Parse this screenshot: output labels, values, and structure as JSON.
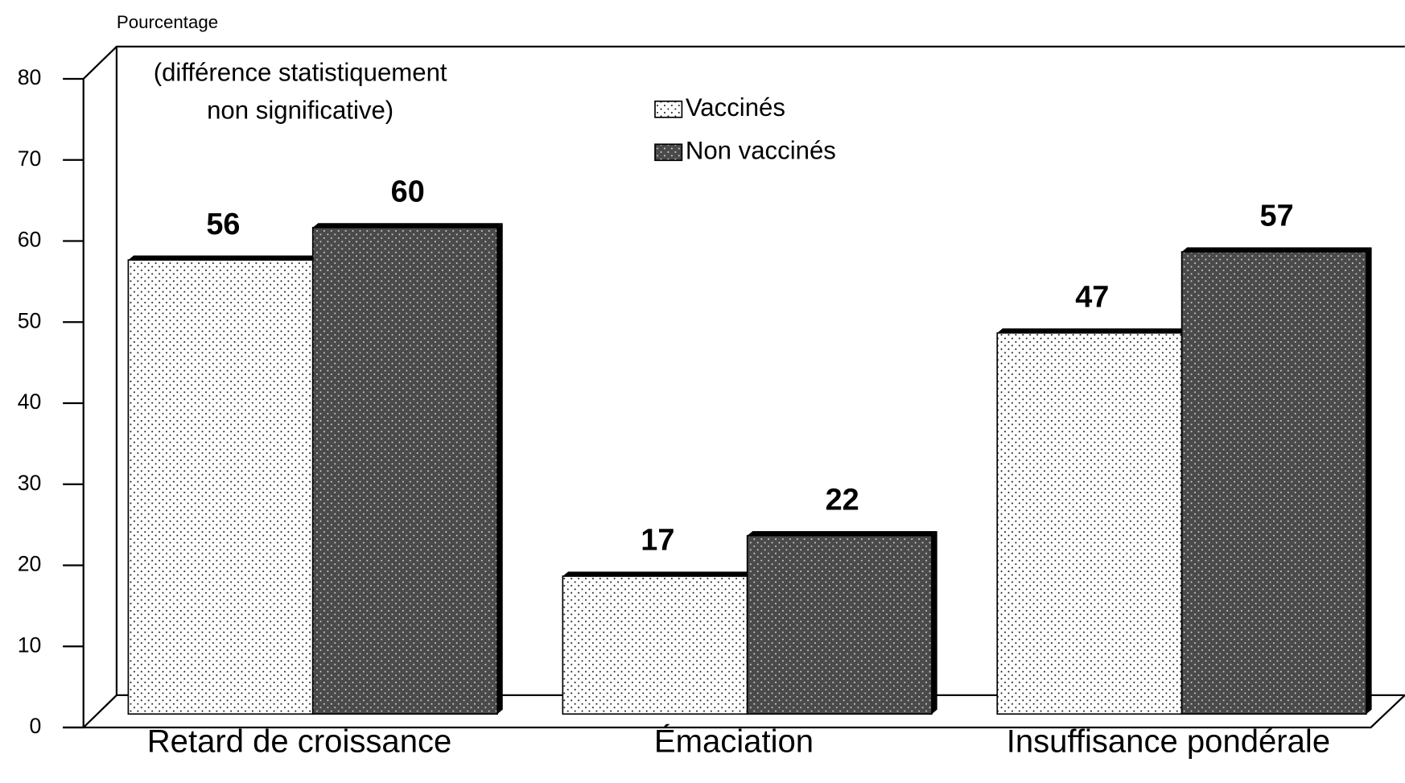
{
  "chart_data": {
    "type": "bar",
    "y_label": "Pourcentage",
    "annotation": [
      "(différence statistiquement",
      "non significative)"
    ],
    "categories": [
      "Retard de croissance",
      "Émaciation",
      "Insuffisance pondérale"
    ],
    "series": [
      {
        "name": "Vaccinés",
        "color": "#ffffff",
        "values": [
          56,
          17,
          47
        ]
      },
      {
        "name": "Non vaccinés",
        "color": "#4a4a4a",
        "values": [
          60,
          22,
          57
        ]
      }
    ],
    "ylim": [
      0,
      80
    ],
    "yticks": [
      0,
      10,
      20,
      30,
      40,
      50,
      60,
      70,
      80
    ]
  }
}
